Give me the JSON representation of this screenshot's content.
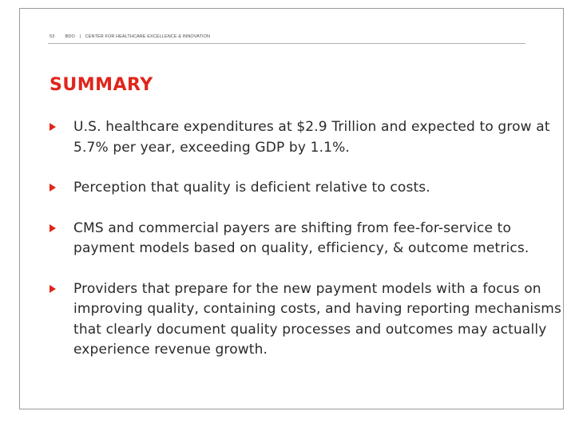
{
  "header": {
    "page_number": "53",
    "org": "BDO",
    "separator": "|",
    "center": "CENTER FOR HEALTHCARE EXCELLENCE & INNOVATION"
  },
  "title": "SUMMARY",
  "accent_color": "#e0251c",
  "bullets": [
    {
      "text": "U.S. healthcare expenditures at $2.9 Trillion and expected to grow at 5.7% per year, exceeding GDP by 1.1%."
    },
    {
      "text": "Perception that quality is deficient relative to costs."
    },
    {
      "text": "CMS and commercial payers are shifting from fee-for-service to payment models based on quality, efficiency, & outcome metrics."
    },
    {
      "text": "Providers that prepare for the new payment models with a focus on improving quality, containing costs, and having reporting mechanisms that clearly document quality processes and outcomes may actually experience revenue growth."
    }
  ],
  "bullet_icon": "triangle-right-icon"
}
